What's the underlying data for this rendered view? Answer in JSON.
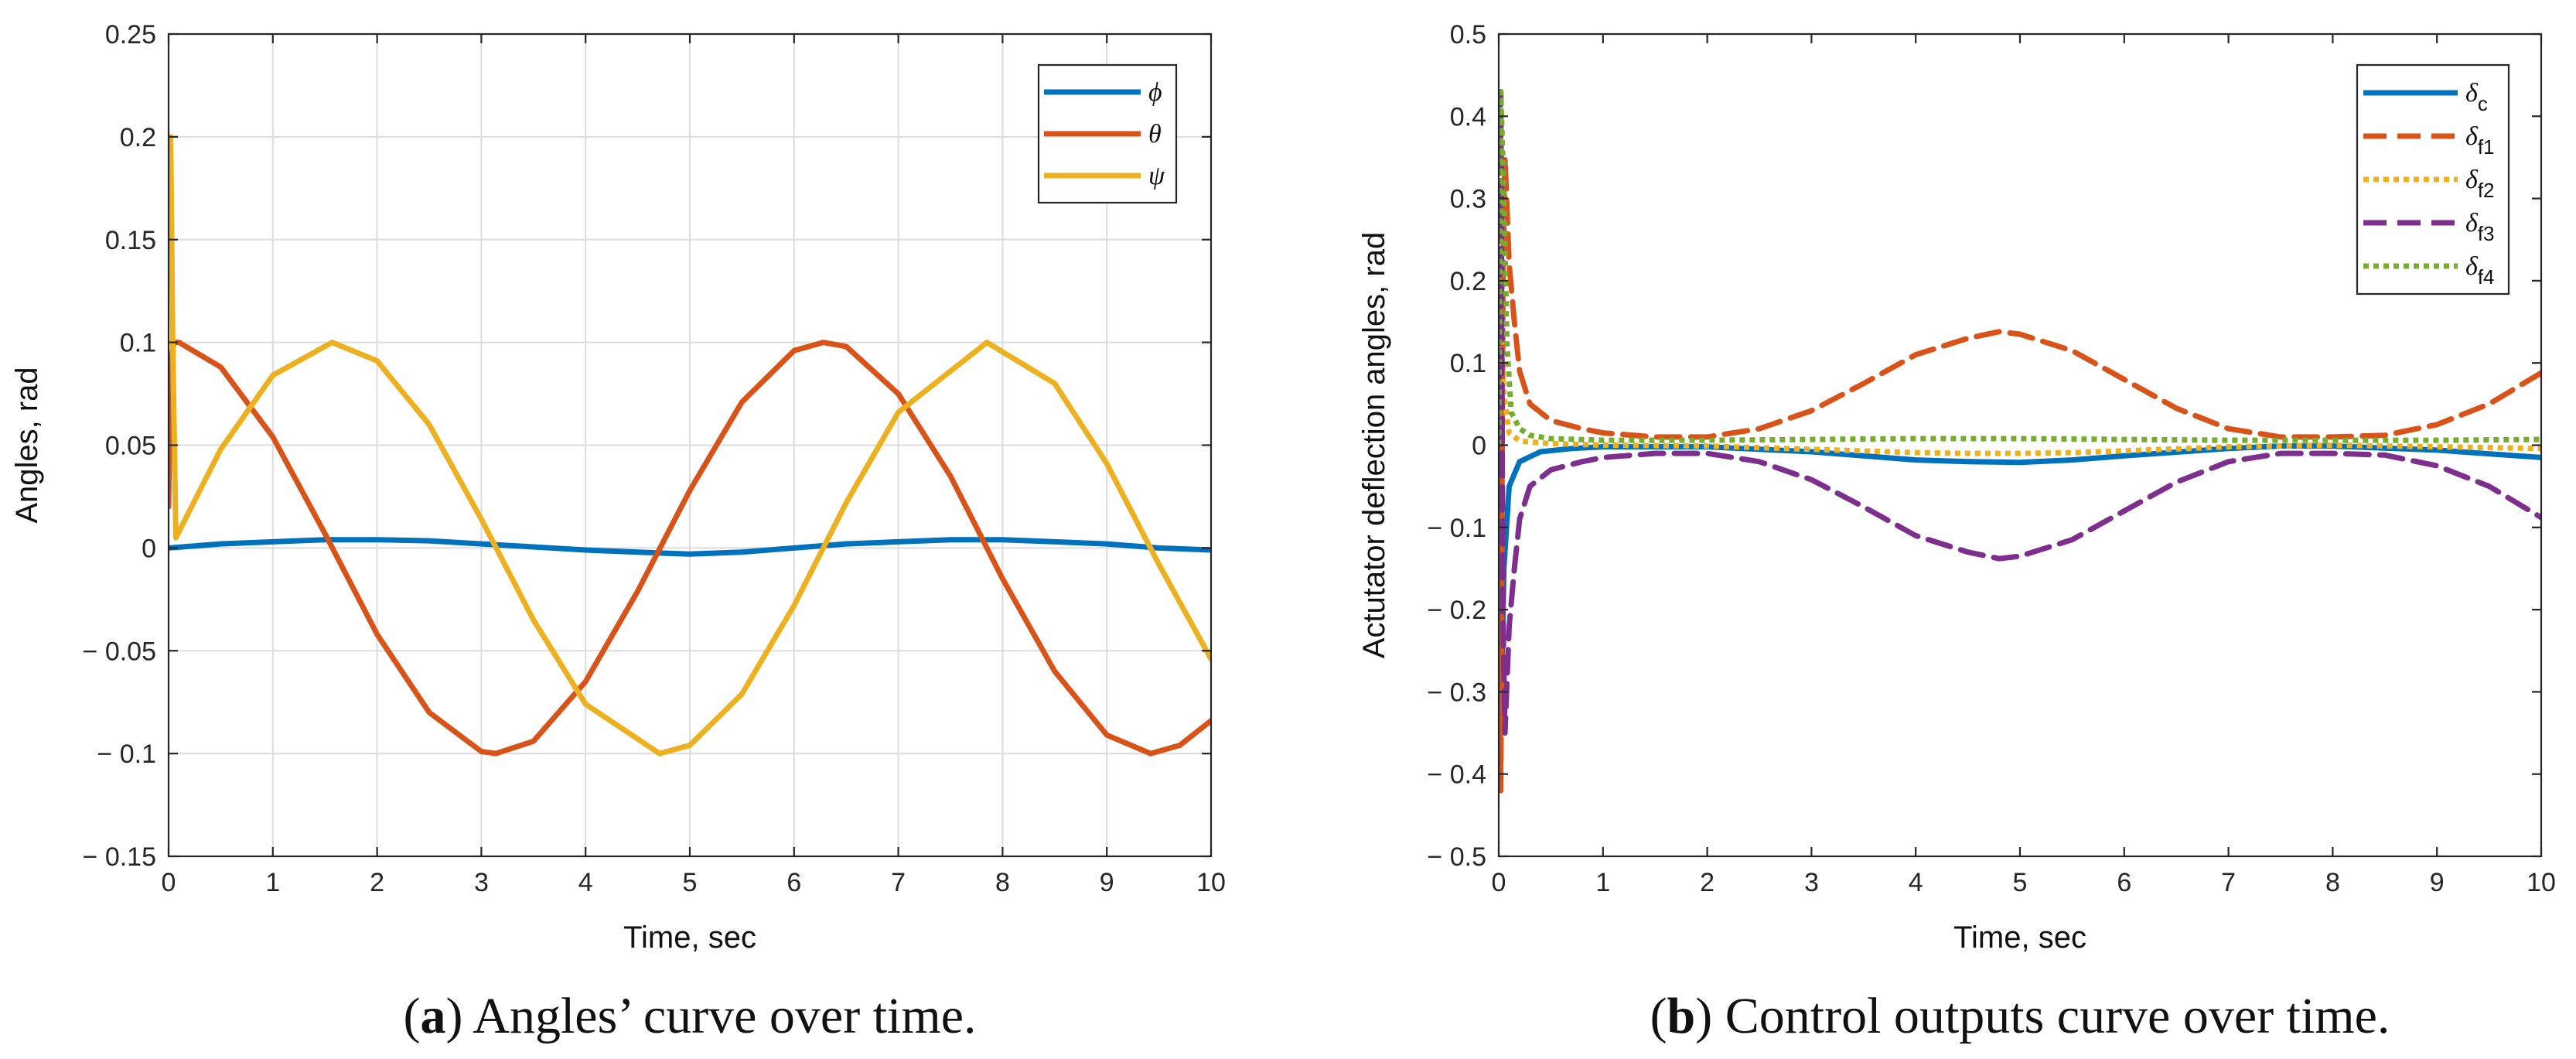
{
  "chart_data": [
    {
      "id": "a",
      "type": "line",
      "title": "",
      "xlabel": "Time, sec",
      "ylabel": "Angles, rad",
      "xlim": [
        0,
        10
      ],
      "ylim": [
        -0.15,
        0.25
      ],
      "xticks": [
        0,
        1,
        2,
        3,
        4,
        5,
        6,
        7,
        8,
        9,
        10
      ],
      "xtick_labels": [
        "0",
        "1",
        "2",
        "3",
        "4",
        "5",
        "6",
        "7",
        "8",
        "9",
        "10"
      ],
      "yticks": [
        -0.15,
        -0.1,
        -0.05,
        0,
        0.05,
        0.1,
        0.15,
        0.2,
        0.25
      ],
      "ytick_labels": [
        "− 0.15",
        "− 0.1",
        "− 0.05",
        "0",
        "0.05",
        "0.1",
        "0.15",
        "0.2",
        "0.25"
      ],
      "grid": true,
      "legend_position": "top-right",
      "caption": {
        "prefix": "(",
        "letter": "a",
        "text": ") Angles’ curve over time."
      },
      "series": [
        {
          "name": "ϕ",
          "sub": "",
          "color": "#0072bd",
          "dash": "solid",
          "x": [
            0,
            0.5,
            1,
            1.5,
            2,
            2.5,
            3,
            3.5,
            4,
            4.5,
            5,
            5.5,
            6,
            6.5,
            7,
            7.5,
            8,
            8.5,
            9,
            9.5,
            10
          ],
          "values": [
            0,
            0.002,
            0.003,
            0.004,
            0.004,
            0.0035,
            0.002,
            0.0005,
            -0.001,
            -0.002,
            -0.003,
            -0.002,
            0,
            0.002,
            0.003,
            0.004,
            0.004,
            0.003,
            0.002,
            0,
            -0.001
          ]
        },
        {
          "name": "θ",
          "sub": "",
          "color": "#d95319",
          "dash": "solid",
          "x": [
            0,
            0.02,
            0.05,
            0.1,
            0.5,
            1,
            1.5,
            2,
            2.5,
            3,
            3.14,
            3.5,
            4,
            4.5,
            5,
            5.5,
            6,
            6.28,
            6.5,
            7,
            7.5,
            8,
            8.5,
            9,
            9.42,
            9.7,
            10
          ],
          "values": [
            0.02,
            0.09,
            0.1,
            0.1,
            0.088,
            0.054,
            0.007,
            -0.042,
            -0.08,
            -0.099,
            -0.1,
            -0.094,
            -0.065,
            -0.021,
            0.028,
            0.071,
            0.096,
            0.1,
            0.098,
            0.075,
            0.035,
            -0.015,
            -0.06,
            -0.091,
            -0.1,
            -0.096,
            -0.084
          ]
        },
        {
          "name": "ψ",
          "sub": "",
          "color": "#edb120",
          "dash": "solid",
          "x": [
            0,
            0.02,
            0.04,
            0.07,
            0.5,
            1,
            1.57,
            2,
            2.5,
            3,
            3.5,
            4,
            4.71,
            5,
            5.5,
            6,
            6.5,
            7,
            7.85,
            8.5,
            9,
            9.5,
            10
          ],
          "values": [
            0.2,
            0.2,
            0.1,
            0.005,
            0.048,
            0.084,
            0.1,
            0.091,
            0.06,
            0.014,
            -0.035,
            -0.076,
            -0.1,
            -0.096,
            -0.071,
            -0.028,
            0.022,
            0.066,
            0.1,
            0.08,
            0.041,
            -0.008,
            -0.054
          ]
        }
      ]
    },
    {
      "id": "b",
      "type": "line",
      "title": "",
      "xlabel": "Time, sec",
      "ylabel": "Actutator deflection angles, rad",
      "xlim": [
        0,
        10
      ],
      "ylim": [
        -0.5,
        0.5
      ],
      "xticks": [
        0,
        1,
        2,
        3,
        4,
        5,
        6,
        7,
        8,
        9,
        10
      ],
      "xtick_labels": [
        "0",
        "1",
        "2",
        "3",
        "4",
        "5",
        "6",
        "7",
        "8",
        "9",
        "10"
      ],
      "yticks": [
        -0.5,
        -0.4,
        -0.3,
        -0.2,
        -0.1,
        0,
        0.1,
        0.2,
        0.3,
        0.4,
        0.5
      ],
      "ytick_labels": [
        "− 0.5",
        "− 0.4",
        "− 0.3",
        "− 0.2",
        "− 0.1",
        "0",
        "0.1",
        "0.2",
        "0.3",
        "0.4",
        "0.5"
      ],
      "grid": false,
      "legend_position": "top-right",
      "caption": {
        "prefix": "(",
        "letter": "b",
        "text": ") Control outputs curve over time."
      },
      "series": [
        {
          "name": "δ",
          "sub": "c",
          "color": "#0072bd",
          "dash": "solid",
          "x": [
            0,
            0.02,
            0.05,
            0.1,
            0.2,
            0.4,
            0.7,
            1,
            2,
            3,
            4,
            4.5,
            5,
            5.5,
            6,
            7,
            7.5,
            8,
            9,
            10
          ],
          "values": [
            -0.02,
            -0.35,
            -0.15,
            -0.05,
            -0.02,
            -0.008,
            -0.004,
            -0.002,
            -0.002,
            -0.008,
            -0.018,
            -0.02,
            -0.021,
            -0.018,
            -0.013,
            -0.004,
            -0.001,
            -0.001,
            -0.006,
            -0.015
          ]
        },
        {
          "name": "δ",
          "sub": "f1",
          "color": "#d95319",
          "dash": "dashed",
          "x": [
            0,
            0.02,
            0.04,
            0.06,
            0.1,
            0.15,
            0.2,
            0.3,
            0.5,
            0.8,
            1,
            1.5,
            2,
            2.5,
            3,
            3.5,
            4,
            4.5,
            4.8,
            5,
            5.5,
            6,
            6.5,
            7,
            7.5,
            8,
            8.5,
            9,
            9.5,
            10
          ],
          "values": [
            0.0,
            -0.42,
            0.2,
            0.35,
            0.22,
            0.15,
            0.09,
            0.05,
            0.03,
            0.02,
            0.015,
            0.01,
            0.01,
            0.02,
            0.042,
            0.075,
            0.11,
            0.13,
            0.138,
            0.135,
            0.115,
            0.08,
            0.045,
            0.02,
            0.01,
            0.01,
            0.012,
            0.025,
            0.05,
            0.088
          ]
        },
        {
          "name": "δ",
          "sub": "f2",
          "color": "#edb120",
          "dash": "dotted",
          "x": [
            0,
            0.02,
            0.05,
            0.1,
            0.2,
            0.5,
            1,
            2,
            3,
            4,
            4.5,
            5,
            5.5,
            6,
            7,
            8,
            9,
            10
          ],
          "values": [
            0.0,
            0.15,
            0.06,
            0.015,
            0.005,
            0.002,
            0.0,
            -0.001,
            -0.005,
            -0.009,
            -0.01,
            -0.01,
            -0.009,
            -0.007,
            -0.002,
            0.0,
            -0.002,
            -0.004
          ]
        },
        {
          "name": "δ",
          "sub": "f3",
          "color": "#7e2f8e",
          "dash": "dashed",
          "x": [
            0,
            0.02,
            0.04,
            0.06,
            0.1,
            0.15,
            0.2,
            0.3,
            0.5,
            0.8,
            1,
            1.5,
            2,
            2.5,
            3,
            3.5,
            4,
            4.5,
            4.8,
            5,
            5.5,
            6,
            6.5,
            7,
            7.5,
            8,
            8.5,
            9,
            9.5,
            10
          ],
          "values": [
            0.0,
            0.43,
            -0.2,
            -0.35,
            -0.22,
            -0.15,
            -0.09,
            -0.05,
            -0.03,
            -0.02,
            -0.015,
            -0.01,
            -0.01,
            -0.02,
            -0.042,
            -0.075,
            -0.11,
            -0.13,
            -0.138,
            -0.135,
            -0.115,
            -0.08,
            -0.045,
            -0.02,
            -0.01,
            -0.01,
            -0.012,
            -0.025,
            -0.05,
            -0.088
          ]
        },
        {
          "name": "δ",
          "sub": "f4",
          "color": "#77ac30",
          "dash": "dotted",
          "x": [
            0,
            0.02,
            0.05,
            0.08,
            0.12,
            0.2,
            0.3,
            0.5,
            1,
            2,
            3,
            4,
            5,
            6,
            7,
            8,
            9,
            10
          ],
          "values": [
            0.0,
            0.43,
            0.3,
            0.12,
            0.04,
            0.02,
            0.012,
            0.008,
            0.006,
            0.006,
            0.007,
            0.008,
            0.008,
            0.007,
            0.006,
            0.006,
            0.006,
            0.007
          ]
        }
      ]
    }
  ]
}
